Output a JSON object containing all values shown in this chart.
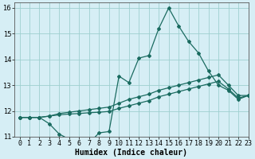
{
  "xlabel": "Humidex (Indice chaleur)",
  "bg_color": "#d6eef5",
  "line_color": "#1a6b60",
  "grid_color": "#9ecfcf",
  "xlim": [
    -0.5,
    23
  ],
  "ylim": [
    11,
    16.2
  ],
  "xticks": [
    0,
    1,
    2,
    3,
    4,
    5,
    6,
    7,
    8,
    9,
    10,
    11,
    12,
    13,
    14,
    15,
    16,
    17,
    18,
    19,
    20,
    21,
    22,
    23
  ],
  "yticks": [
    11,
    12,
    13,
    14,
    15,
    16
  ],
  "line1_x": [
    0,
    1,
    2,
    3,
    4,
    5,
    6,
    7,
    8,
    9,
    10,
    11,
    12,
    13,
    14,
    15,
    16,
    17,
    18,
    19,
    20,
    21,
    22,
    23
  ],
  "line1_y": [
    11.75,
    11.75,
    11.75,
    11.5,
    11.1,
    10.9,
    10.75,
    10.75,
    11.15,
    11.2,
    13.35,
    13.1,
    14.05,
    14.15,
    15.2,
    16.0,
    15.3,
    14.7,
    14.25,
    13.55,
    13.0,
    12.8,
    12.45,
    12.6
  ],
  "line2_x": [
    0,
    1,
    2,
    3,
    4,
    5,
    6,
    7,
    8,
    9,
    10,
    11,
    12,
    13,
    14,
    15,
    16,
    17,
    18,
    19,
    20,
    21,
    22,
    23
  ],
  "line2_y": [
    11.75,
    11.75,
    11.75,
    11.8,
    11.85,
    11.88,
    11.9,
    11.93,
    11.95,
    11.98,
    12.1,
    12.2,
    12.3,
    12.4,
    12.55,
    12.65,
    12.75,
    12.85,
    12.95,
    13.05,
    13.15,
    12.85,
    12.5,
    12.6
  ],
  "line3_x": [
    0,
    1,
    2,
    3,
    4,
    5,
    6,
    7,
    8,
    9,
    10,
    11,
    12,
    13,
    14,
    15,
    16,
    17,
    18,
    19,
    20,
    21,
    22,
    23
  ],
  "line3_y": [
    11.75,
    11.75,
    11.75,
    11.8,
    11.9,
    11.95,
    12.0,
    12.05,
    12.1,
    12.15,
    12.3,
    12.45,
    12.55,
    12.65,
    12.8,
    12.9,
    13.0,
    13.1,
    13.2,
    13.3,
    13.4,
    13.0,
    12.6,
    12.6
  ]
}
